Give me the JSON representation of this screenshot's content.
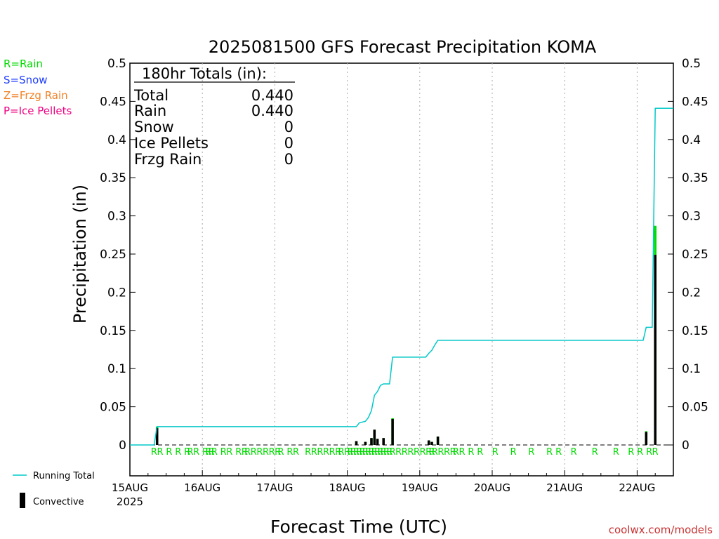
{
  "chart_data": {
    "type": "bar",
    "title": "2025081500 GFS Forecast Precipitation KOMA",
    "ylabel": "Precipitation (in)",
    "xlabel": "Forecast Time (UTC)",
    "ylim": [
      -0.05,
      0.5
    ],
    "yticks": [
      "0.5",
      "0.45",
      "0.4",
      "0.35",
      "0.3",
      "0.25",
      "0.2",
      "0.15",
      "0.1",
      "0.05",
      "0"
    ],
    "xlim_hours": [
      0,
      180
    ],
    "x_tick_labels": [
      "15AUG",
      "16AUG",
      "17AUG",
      "18AUG",
      "19AUG",
      "20AUG",
      "21AUG",
      "22AUG"
    ],
    "x_tick_year": "2025",
    "grid": true,
    "legend_left": [
      {
        "label": "R=Rain",
        "color": "#00dc00"
      },
      {
        "label": "S=Snow",
        "color": "#1e3cff"
      },
      {
        "label": "Z=Frzg Rain",
        "color": "#f08228"
      },
      {
        "label": "P=Ice Pellets",
        "color": "#f00082"
      }
    ],
    "legend_bottom": {
      "running_total": "Running Total",
      "convective": "Convective"
    },
    "totals": {
      "header": "180hr Totals (in):",
      "rows": [
        {
          "label": "Total",
          "value": "0.440"
        },
        {
          "label": "Rain",
          "value": "0.440"
        },
        {
          "label": "Snow",
          "value": "0"
        },
        {
          "label": "Ice Pellets",
          "value": "0"
        },
        {
          "label": "Frzg Rain",
          "value": "0"
        }
      ]
    },
    "precip_bars": [
      {
        "hour": 9,
        "total": 0.024,
        "convective": 0.022
      },
      {
        "hour": 75,
        "total": 0.005,
        "convective": 0.005
      },
      {
        "hour": 78,
        "total": 0.004,
        "convective": 0.004
      },
      {
        "hour": 80,
        "total": 0.009,
        "convective": 0.009
      },
      {
        "hour": 81,
        "total": 0.02,
        "convective": 0.02
      },
      {
        "hour": 82,
        "total": 0.008,
        "convective": 0.008
      },
      {
        "hour": 84,
        "total": 0.009,
        "convective": 0.009
      },
      {
        "hour": 87,
        "total": 0.035,
        "convective": 0.034
      },
      {
        "hour": 99,
        "total": 0.006,
        "convective": 0.006
      },
      {
        "hour": 100,
        "total": 0.004,
        "convective": 0.004
      },
      {
        "hour": 102,
        "total": 0.011,
        "convective": 0.011
      },
      {
        "hour": 171,
        "total": 0.018,
        "convective": 0.017
      },
      {
        "hour": 174,
        "total": 0.287,
        "convective": 0.249
      }
    ],
    "running_total": [
      [
        0,
        0
      ],
      [
        8,
        0
      ],
      [
        9,
        0.024
      ],
      [
        75,
        0.024
      ],
      [
        76,
        0.029
      ],
      [
        78,
        0.031
      ],
      [
        79,
        0.036
      ],
      [
        80,
        0.045
      ],
      [
        81,
        0.065
      ],
      [
        82,
        0.07
      ],
      [
        83,
        0.078
      ],
      [
        84,
        0.08
      ],
      [
        86,
        0.08
      ],
      [
        87,
        0.115
      ],
      [
        98,
        0.115
      ],
      [
        99,
        0.12
      ],
      [
        100,
        0.124
      ],
      [
        101,
        0.131
      ],
      [
        102,
        0.137
      ],
      [
        170,
        0.137
      ],
      [
        171,
        0.154
      ],
      [
        173,
        0.154
      ],
      [
        174,
        0.441
      ],
      [
        180,
        0.441
      ]
    ],
    "rain_markers_hours": [
      8,
      10,
      13,
      16,
      19,
      20,
      22,
      25,
      26,
      27,
      28,
      31,
      33,
      36,
      38,
      39,
      41,
      43,
      45,
      47,
      49,
      50,
      53,
      55,
      59,
      61,
      63,
      65,
      67,
      69,
      70,
      72,
      73,
      74,
      75,
      76,
      77,
      78,
      79,
      80,
      81,
      82,
      83,
      84,
      85,
      86,
      87,
      89,
      91,
      93,
      95,
      97,
      99,
      100,
      101,
      103,
      105,
      107,
      108,
      110,
      113,
      116,
      121,
      127,
      133,
      139,
      142,
      147,
      154,
      161,
      166,
      169,
      172,
      174
    ],
    "rain_marker_label": "R",
    "watermark": "coolwx.com/models"
  }
}
